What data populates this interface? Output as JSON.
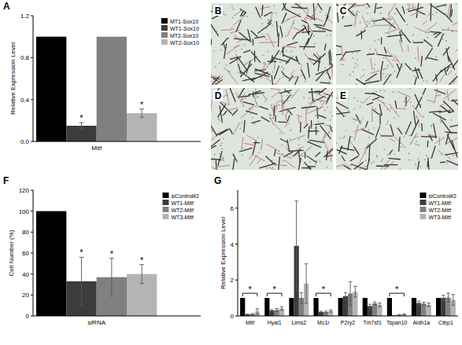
{
  "chart_data": [
    {
      "panel_label": "A",
      "type": "bar",
      "categories": [
        "Mitf"
      ],
      "ylabel": "Relative Expression Level",
      "ylim": [
        0,
        1.2
      ],
      "yticks": [
        {
          "value": 0,
          "label": "0.0"
        },
        {
          "value": 0.4,
          "label": "0.4"
        },
        {
          "value": 0.8,
          "label": "0.8"
        },
        {
          "value": 1.2,
          "label": "1.2"
        }
      ],
      "grid": false,
      "legend": "upper right",
      "series": [
        {
          "name": "MT1-Sox10",
          "color": "#000000",
          "values": [
            1.0
          ],
          "errors": [
            null
          ]
        },
        {
          "name": "WT1-Sox10",
          "color": "#3c3c3c",
          "values": [
            0.15
          ],
          "errors": [
            0.03
          ]
        },
        {
          "name": "MT2-Sox10",
          "color": "#808080",
          "values": [
            1.0
          ],
          "errors": [
            null
          ]
        },
        {
          "name": "WT2-Sox10",
          "color": "#b4b4b4",
          "values": [
            0.27
          ],
          "errors": [
            0.04
          ]
        }
      ],
      "annotations": [
        {
          "text": "*",
          "series": "WT1-Sox10",
          "category": "Mitf"
        },
        {
          "text": "*",
          "series": "WT2-Sox10",
          "category": "Mitf"
        }
      ]
    },
    {
      "panel_label": "F",
      "type": "bar",
      "categories": [
        "siRNA"
      ],
      "ylabel": "Cell Number (%)",
      "ylim": [
        0,
        120
      ],
      "yticks": [
        0,
        20,
        40,
        60,
        80,
        100,
        120
      ],
      "grid": false,
      "legend": "upper right",
      "series": [
        {
          "name": "siControl#2",
          "color": "#000000",
          "values": [
            100
          ],
          "errors": [
            null
          ]
        },
        {
          "name": "WT1-Mitf",
          "color": "#3c3c3c",
          "values": [
            33
          ],
          "errors": [
            23
          ]
        },
        {
          "name": "WT2-Mitf",
          "color": "#808080",
          "values": [
            37
          ],
          "errors": [
            18
          ]
        },
        {
          "name": "WT3-Mitf",
          "color": "#b4b4b4",
          "values": [
            40
          ],
          "errors": [
            9
          ]
        }
      ],
      "annotations": [
        {
          "text": "*",
          "series": "WT1-Mitf",
          "category": "siRNA"
        },
        {
          "text": "*",
          "series": "WT2-Mitf",
          "category": "siRNA"
        },
        {
          "text": "*",
          "series": "WT3-Mitf",
          "category": "siRNA"
        }
      ]
    },
    {
      "panel_label": "G",
      "type": "bar",
      "categories": [
        "Mitf",
        "Hyal1",
        "Lims2",
        "Mc1r",
        "P2ry2",
        "Tm7sf1",
        "Tspan10",
        "Aldh1a",
        "Ctbp1"
      ],
      "ylabel": "Relative Expression Level",
      "ylim": [
        0,
        7
      ],
      "yticks": [
        0,
        2,
        4,
        6
      ],
      "grid": false,
      "legend": "upper right",
      "series": [
        {
          "name": "siControl#2",
          "color": "#000000",
          "values": [
            1,
            1,
            1,
            1,
            1,
            1,
            1,
            1,
            1
          ],
          "errors": [
            null,
            null,
            null,
            null,
            null,
            null,
            null,
            null,
            null
          ]
        },
        {
          "name": "WT1-Mitf",
          "color": "#3c3c3c",
          "values": [
            0.08,
            0.3,
            3.9,
            0.22,
            1.1,
            0.55,
            0.02,
            0.72,
            1.0
          ],
          "errors": [
            0.02,
            0.05,
            2.5,
            0.04,
            0.2,
            0.1,
            0.01,
            0.1,
            0.15
          ]
        },
        {
          "name": "WT2-Mitf",
          "color": "#808080",
          "values": [
            0.1,
            0.33,
            1.0,
            0.22,
            1.25,
            0.7,
            0.06,
            0.68,
            1.02
          ],
          "errors": [
            0.03,
            0.08,
            0.3,
            0.05,
            0.65,
            0.08,
            0.02,
            0.08,
            0.25
          ]
        },
        {
          "name": "WT3-Mitf",
          "color": "#b4b4b4",
          "values": [
            0.25,
            0.42,
            1.8,
            0.27,
            1.35,
            0.62,
            0.08,
            0.62,
            0.9
          ],
          "errors": [
            0.15,
            0.1,
            1.1,
            0.06,
            0.3,
            0.1,
            0.03,
            0.1,
            0.3
          ]
        }
      ],
      "annotations": [
        {
          "text": "*",
          "category": "Mitf"
        },
        {
          "text": "*",
          "category": "Hyal1"
        },
        {
          "text": "*",
          "category": "Mc1r"
        },
        {
          "text": "*",
          "category": "Tspan10"
        }
      ]
    }
  ],
  "images": [
    {
      "label": "B"
    },
    {
      "label": "C"
    },
    {
      "label": "D"
    },
    {
      "label": "E"
    }
  ]
}
